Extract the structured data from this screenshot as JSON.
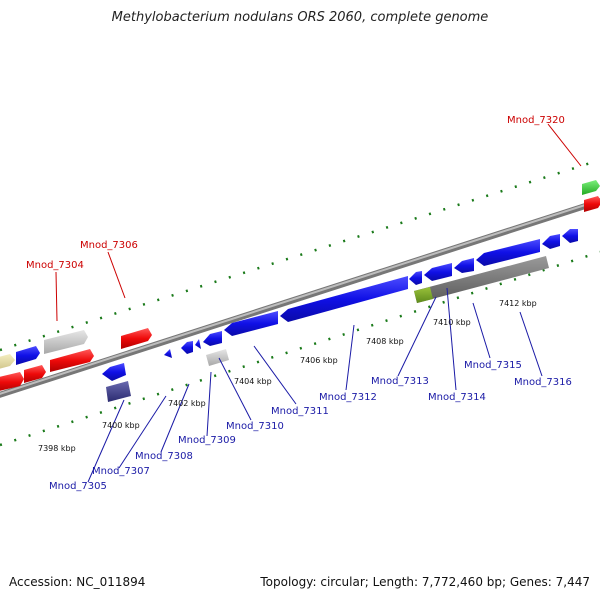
{
  "title": "Methylobacterium nodulans ORS 2060, complete genome",
  "footer": {
    "accession": "Accession: NC_011894",
    "topology": "Topology: circular; Length: 7,772,460 bp; Genes: 7,447"
  },
  "scale": {
    "unit": "kbp",
    "ticks": [
      "7398 kbp",
      "7400 kbp",
      "7402 kbp",
      "7404 kbp",
      "7406 kbp",
      "7408 kbp",
      "7410 kbp",
      "7412 kbp"
    ]
  },
  "gene_labels": {
    "forward": [
      "Mnod_7304",
      "Mnod_7306",
      "Mnod_7320"
    ],
    "reverse": [
      "Mnod_7305",
      "Mnod_7307",
      "Mnod_7308",
      "Mnod_7309",
      "Mnod_7310",
      "Mnod_7311",
      "Mnod_7312",
      "Mnod_7313",
      "Mnod_7314",
      "Mnod_7315",
      "Mnod_7316"
    ]
  },
  "colors": {
    "forward_label": "#cc0000",
    "reverse_label": "#1a1aa6",
    "cds": "#1a1aee",
    "rna_gene": "#ee1111",
    "pseudo": "#bfbfbf",
    "backbone": "#888888",
    "tick": "#1a7a1a"
  }
}
